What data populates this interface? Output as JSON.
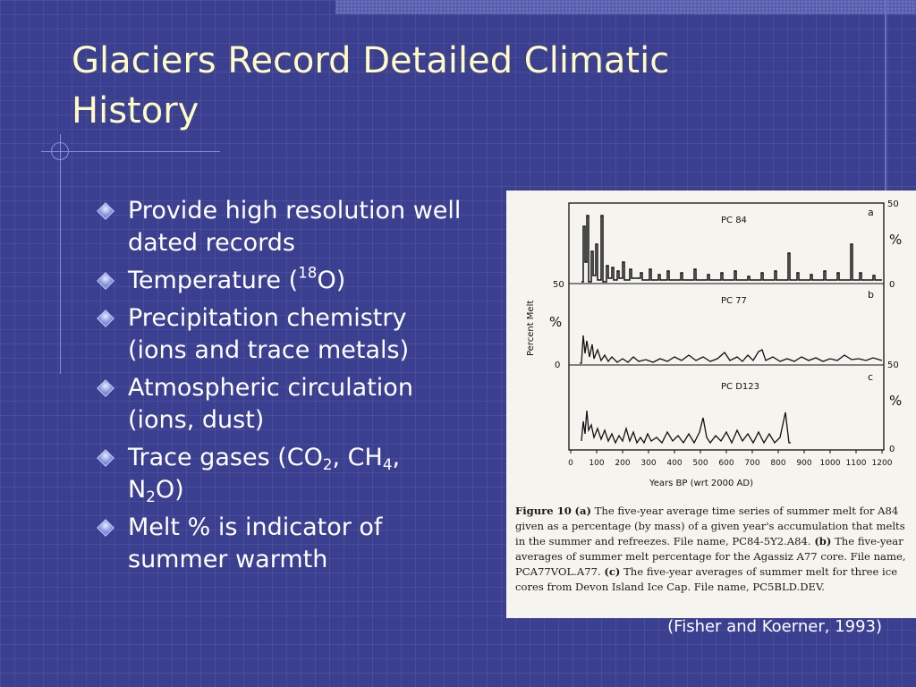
{
  "slide": {
    "title": "Glaciers Record Detailed Climatic History",
    "citation": "(Fisher and Koerner, 1993)"
  },
  "bullets": [
    {
      "text": "Provide high resolution well dated records"
    },
    {
      "text_before": "Temperature (",
      "sup": "18",
      "text_after": "O)"
    },
    {
      "text": "Precipitation chemistry (ions and trace metals)"
    },
    {
      "text": "Atmospheric circulation (ions, dust)"
    },
    {
      "t1": "Trace gases (CO",
      "s1": "2",
      "t2": ", CH",
      "s2": "4",
      "t3": ",",
      "t4": "N",
      "s3": "2",
      "t5": "O)"
    },
    {
      "text": "Melt % is indicator of summer warmth"
    }
  ],
  "figure": {
    "panels": [
      {
        "letter": "a",
        "label": "PC 84",
        "left_tick": "50",
        "right_top": "50",
        "right_bottom": "0",
        "right_unit": "%"
      },
      {
        "letter": "b",
        "label": "PC 77",
        "left_unit": "%",
        "left_tick": "0",
        "right_bottom": "50"
      },
      {
        "letter": "c",
        "label": "PC D123",
        "right_unit": "%",
        "right_bottom": "0"
      }
    ],
    "y_axis_label": "Percent Melt",
    "x_axis_label": "Years BP (wrt 2000 AD)",
    "x_ticks": [
      "0",
      "100",
      "200",
      "300",
      "400",
      "500",
      "600",
      "700",
      "800",
      "900",
      "1000",
      "1100",
      "1200"
    ],
    "caption": {
      "fig_label": "Figure 10",
      "part_a": "(a)",
      "text_a": " The five-year average time series of summer melt for A84 given as a percentage (by mass) of a given year's accumulation that melts in the summer and refreezes. File name, PC84-5Y2.A84. ",
      "part_b": "(b)",
      "text_b": " The five-year averages of summer melt percentage for the Agassiz A77 core. File name, PCA77VOL.A77. ",
      "part_c": "(c)",
      "text_c": " The five-year averages of summer melt for three ice cores from Devon Island Ice Cap. File name, PC5BLD.DEV."
    }
  },
  "colors": {
    "background": "#3b3f8f",
    "title": "#fffbc4",
    "text": "#ffffff"
  }
}
